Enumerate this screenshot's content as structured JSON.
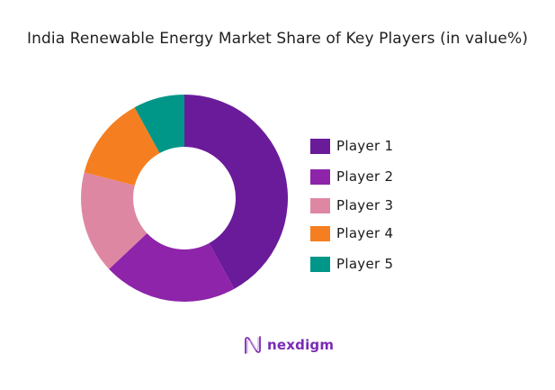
{
  "chart_data": {
    "type": "pie",
    "variant": "donut",
    "title": "India Renewable Energy Market Share of Key Players (in value%)",
    "categories": [
      "Player 1",
      "Player 2",
      "Player 3",
      "Player 4",
      "Player 5"
    ],
    "values": [
      42,
      21,
      16,
      13,
      8
    ],
    "unit": "%",
    "colors": [
      "#6a1b9a",
      "#8e24aa",
      "#de87a3",
      "#f57f20",
      "#009688"
    ],
    "legend_position": "right",
    "start_angle": "12 o'clock, clockwise",
    "inner_radius_ratio": 0.49
  },
  "legend": {
    "items": [
      {
        "label": "Player 1",
        "color": "#6a1b9a"
      },
      {
        "label": "Player 2",
        "color": "#8e24aa"
      },
      {
        "label": "Player 3",
        "color": "#de87a3"
      },
      {
        "label": "Player 4",
        "color": "#f57f20"
      },
      {
        "label": "Player 5",
        "color": "#009688"
      }
    ]
  },
  "branding": {
    "logo_text": "nexdigm",
    "logo_icon": "wave-n-logo-icon",
    "color": "#7a2bb5"
  }
}
